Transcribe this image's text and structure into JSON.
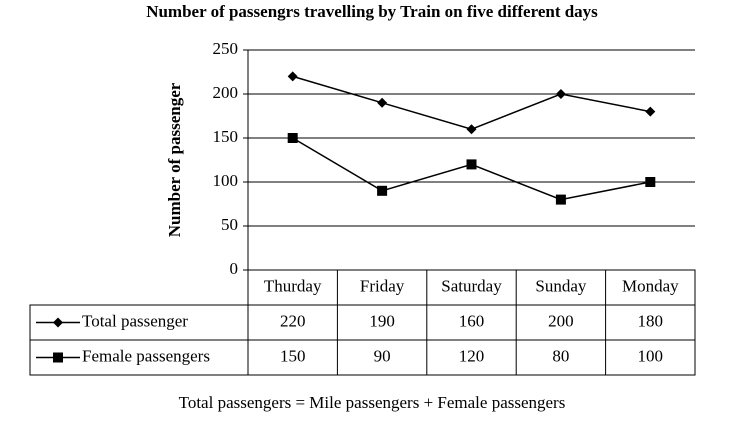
{
  "chart_data": {
    "type": "line",
    "title": "Number of passengrs travelling by Train on five different days",
    "y_label": "Number of passenger",
    "categories": [
      "Thurday",
      "Friday",
      "Saturday",
      "Sunday",
      "Monday"
    ],
    "series": [
      {
        "name": "Total passenger",
        "color": "#000000",
        "marker": "diamond",
        "values": [
          220,
          190,
          160,
          200,
          180
        ]
      },
      {
        "name": "Female passengers",
        "color": "#000000",
        "marker": "square",
        "values": [
          150,
          90,
          120,
          80,
          100
        ]
      }
    ],
    "ylim": [
      0,
      250
    ],
    "yticks": [
      0,
      50,
      100,
      150,
      200,
      250
    ],
    "grid": true,
    "footnote": "Total passengers = Mile passengers + Female passengers"
  }
}
